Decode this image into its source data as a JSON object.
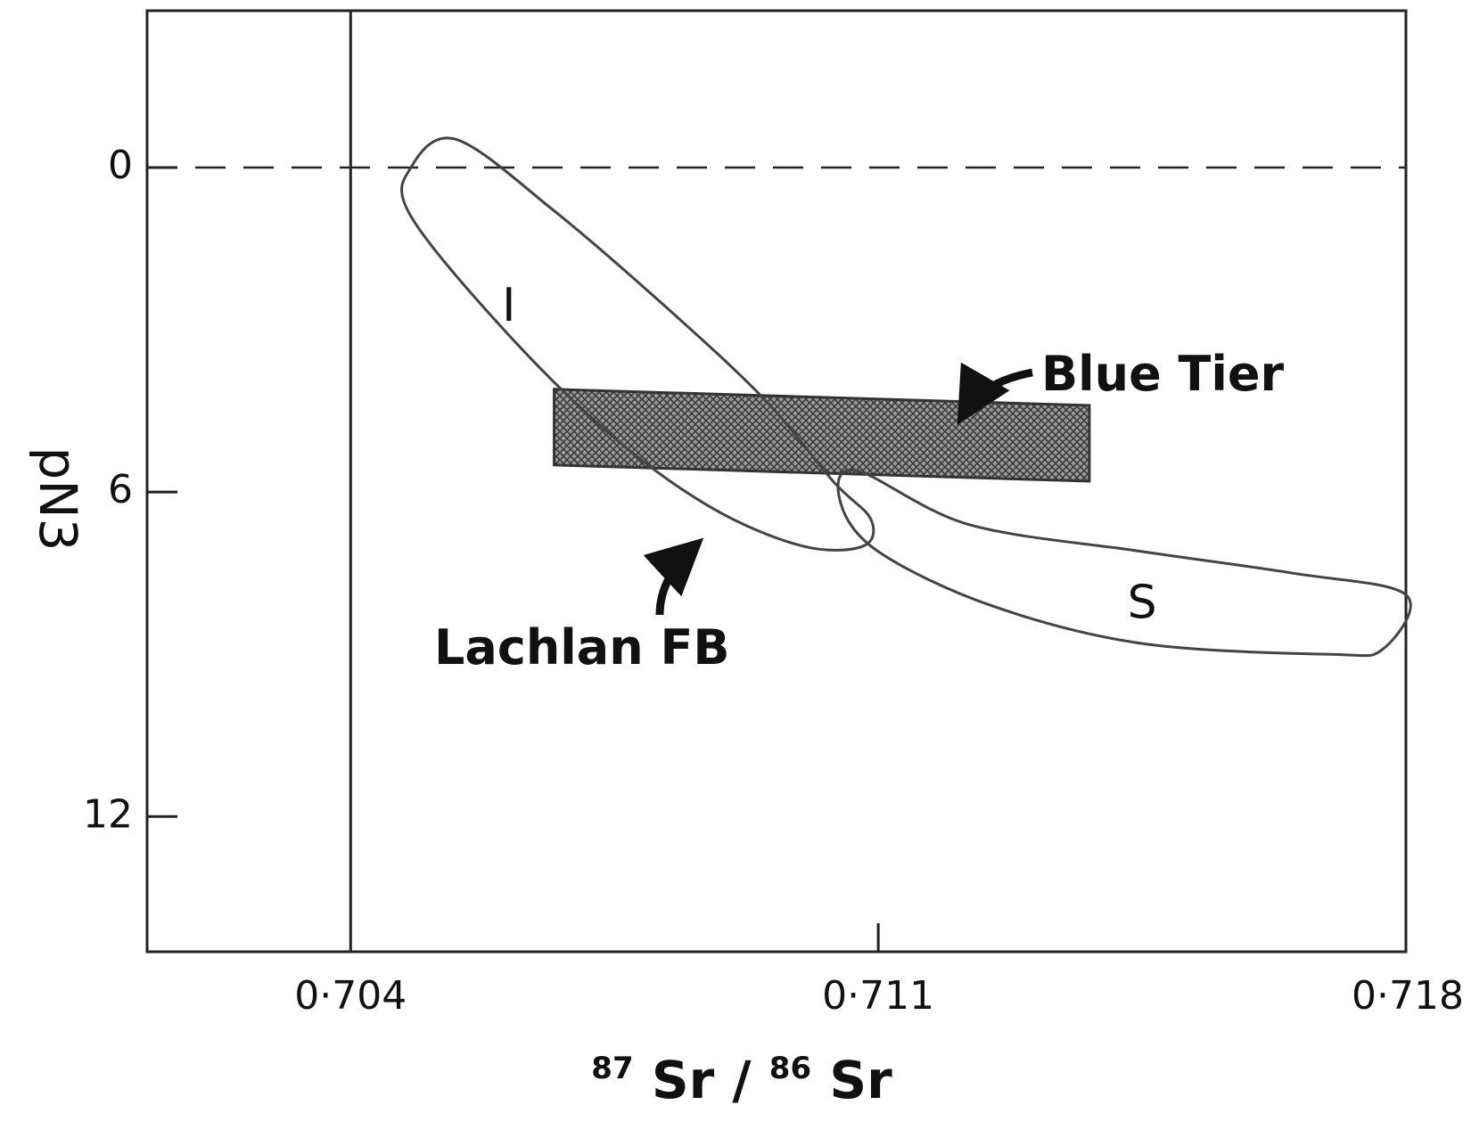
{
  "chart_data": {
    "type": "scatter",
    "title": "",
    "xlabel": {
      "mass1": "87",
      "elem1": "Sr",
      "sep": "/",
      "mass2": "86",
      "elem2": "Sr"
    },
    "ylabel": "pN3",
    "xlim": [
      0.7013,
      0.718
    ],
    "ylim": [
      14.5,
      -2.9
    ],
    "y_inverted": true,
    "grid": false,
    "x_ticks": [
      0.704,
      0.711,
      0.718
    ],
    "x_tick_labels": [
      "0·704",
      "0·711",
      "0·718"
    ],
    "y_ticks": [
      0,
      6,
      12
    ],
    "y_tick_labels": [
      "0",
      "6",
      "12"
    ],
    "reference_lines": [
      {
        "orientation": "vertical",
        "x": 0.704,
        "style": "solid"
      },
      {
        "orientation": "horizontal",
        "y": 0,
        "style": "dashed"
      }
    ],
    "regions": [
      {
        "label": "I",
        "kind": "outline",
        "label_point": [
          0.7061,
          2.6
        ],
        "outline": [
          [
            0.7054,
            -0.52
          ],
          [
            0.7067,
            0.8
          ],
          [
            0.7082,
            2.6
          ],
          [
            0.7095,
            4.3
          ],
          [
            0.7104,
            5.8
          ],
          [
            0.7109,
            6.5
          ],
          [
            0.7108,
            7.0
          ],
          [
            0.71,
            7.0
          ],
          [
            0.7088,
            6.3
          ],
          [
            0.7075,
            5.0
          ],
          [
            0.7061,
            3.1
          ],
          [
            0.7048,
            0.9
          ],
          [
            0.7048,
            0.0
          ]
        ]
      },
      {
        "label": "S",
        "kind": "outline",
        "label_point": [
          0.7145,
          8.1
        ],
        "outline": [
          [
            0.7107,
            5.6
          ],
          [
            0.7122,
            6.6
          ],
          [
            0.7145,
            7.1
          ],
          [
            0.7165,
            7.5
          ],
          [
            0.718,
            7.9
          ],
          [
            0.7177,
            8.9
          ],
          [
            0.717,
            9.0
          ],
          [
            0.7145,
            8.8
          ],
          [
            0.7125,
            8.1
          ],
          [
            0.711,
            7.1
          ],
          [
            0.7105,
            6.2
          ]
        ]
      },
      {
        "label": "Blue Tier",
        "kind": "hatched_band",
        "x_range": [
          0.7067,
          0.7138
        ],
        "y_range_left": [
          4.1,
          5.5
        ],
        "y_range_right": [
          4.4,
          5.8
        ]
      }
    ],
    "annotations": [
      {
        "text": "Blue Tier",
        "points_to": [
          0.7123,
          4.4
        ]
      },
      {
        "text": "Lachlan FB",
        "points_to": [
          0.7087,
          6.5
        ]
      }
    ]
  }
}
